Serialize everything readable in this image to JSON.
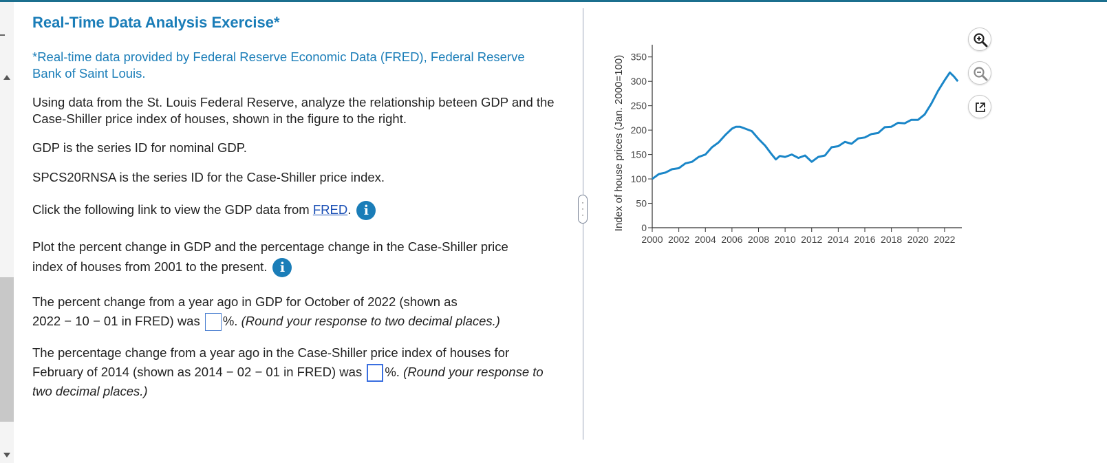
{
  "exercise": {
    "title": "Real-Time Data Analysis Exercise*",
    "note": "*Real-time data provided by Federal Reserve Economic Data (FRED), Federal Reserve Bank of Saint Louis.",
    "intro": "Using data from the St. Louis Federal Reserve, analyze the relationship beteen GDP and the Case-Shiller price index of houses, shown in the figure to the right.",
    "gdp_line": "GDP is the series ID for nominal GDP.",
    "spcs_line": "SPCS20RNSA is the series ID for the Case-Shiller price index.",
    "link_prefix": "Click the following link to view the GDP data from ",
    "link_text": "FRED",
    "link_suffix": ".",
    "plot_text": "Plot the percent change in GDP and the percentage change in the Case-Shiller price index of houses from 2001 to the present.",
    "q1_a": "The percent change from a year ago in GDP for October of 2022 (shown as",
    "q1_b": "2022 − 10 − 01 in FRED) was",
    "q1_c": "%.",
    "q1_hint": "(Round your response to two decimal places.)",
    "q1_value": "",
    "q2_a": "The percentage change from a year ago in the Case-Shiller price index of houses for",
    "q2_b": "February of 2014 (shown as 2014 − 02 − 01 in FRED) was",
    "q2_c": "%.",
    "q2_hint": "(Round your response to",
    "q2_hint2": "two decimal places.)",
    "q2_value": "",
    "info_glyph": "i"
  },
  "icons": {
    "info": "info-icon",
    "zoom_in": "zoom-in-icon",
    "zoom_out": "zoom-out-icon",
    "popout": "popout-icon"
  },
  "colors": {
    "title": "#1a7db8",
    "line": "#1a86c8",
    "info": "#1a7db8"
  },
  "chart_data": {
    "type": "line",
    "title": "",
    "xlabel": "",
    "ylabel": "Index of house prices (Jan. 2000=100)",
    "xlim": [
      2000,
      2023.3
    ],
    "ylim": [
      0,
      375
    ],
    "xticks": [
      2000,
      2002,
      2004,
      2006,
      2008,
      2010,
      2012,
      2014,
      2016,
      2018,
      2020,
      2022
    ],
    "yticks": [
      0,
      50,
      100,
      150,
      200,
      250,
      300,
      350
    ],
    "grid": false,
    "series": [
      {
        "x": [
          2000.0,
          2000.5,
          2001.0,
          2001.5,
          2002.0,
          2002.5,
          2003.0,
          2003.5,
          2004.0,
          2004.5,
          2005.0,
          2005.5,
          2006.0,
          2006.3,
          2006.6,
          2007.0,
          2007.5,
          2008.0,
          2008.5,
          2009.0,
          2009.3,
          2009.6,
          2010.0,
          2010.5,
          2011.0,
          2011.5,
          2012.0,
          2012.5,
          2013.0,
          2013.5,
          2014.0,
          2014.5,
          2015.0,
          2015.5,
          2016.0,
          2016.5,
          2017.0,
          2017.5,
          2018.0,
          2018.5,
          2019.0,
          2019.5,
          2020.0,
          2020.5,
          2021.0,
          2021.5,
          2022.0,
          2022.4,
          2022.7,
          2023.0
        ],
        "y": [
          100,
          110,
          113,
          120,
          122,
          132,
          135,
          145,
          150,
          165,
          175,
          190,
          203,
          207,
          207,
          203,
          198,
          182,
          168,
          150,
          140,
          147,
          145,
          150,
          143,
          148,
          135,
          145,
          148,
          165,
          167,
          176,
          172,
          183,
          185,
          192,
          194,
          206,
          207,
          215,
          214,
          221,
          221,
          232,
          254,
          280,
          302,
          318,
          310,
          300
        ]
      }
    ]
  }
}
